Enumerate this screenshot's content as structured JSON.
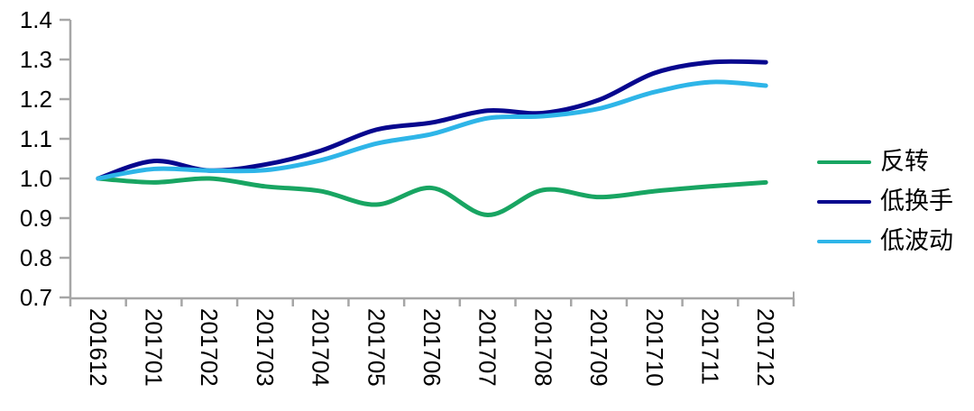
{
  "chart_data": {
    "type": "line",
    "title": "",
    "xlabel": "",
    "ylabel": "",
    "categories": [
      "201612",
      "201701",
      "201702",
      "201703",
      "201704",
      "201705",
      "201706",
      "201707",
      "201708",
      "201709",
      "201710",
      "201711",
      "201712"
    ],
    "series": [
      {
        "name": "反转",
        "color": "#18A562",
        "values": [
          1.0,
          0.99,
          1.0,
          0.98,
          0.968,
          0.934,
          0.976,
          0.908,
          0.971,
          0.953,
          0.968,
          0.98,
          0.99
        ]
      },
      {
        "name": "低换手",
        "color": "#07078E",
        "values": [
          1.0,
          1.044,
          1.02,
          1.035,
          1.07,
          1.123,
          1.141,
          1.171,
          1.165,
          1.198,
          1.266,
          1.293,
          1.293
        ]
      },
      {
        "name": "低波动",
        "color": "#2EB5E8",
        "values": [
          1.0,
          1.024,
          1.02,
          1.021,
          1.046,
          1.088,
          1.112,
          1.152,
          1.157,
          1.176,
          1.218,
          1.243,
          1.234
        ]
      }
    ],
    "y_ticks": [
      "1.4",
      "1.3",
      "1.2",
      "1.1",
      "1.0",
      "0.9",
      "0.8",
      "0.7"
    ],
    "ylim": [
      0.7,
      1.4
    ],
    "grid": "off",
    "legend_position": "right",
    "line_style": "smooth",
    "axis_color": "#A6A6A6",
    "tick_label_color": "#000000"
  }
}
